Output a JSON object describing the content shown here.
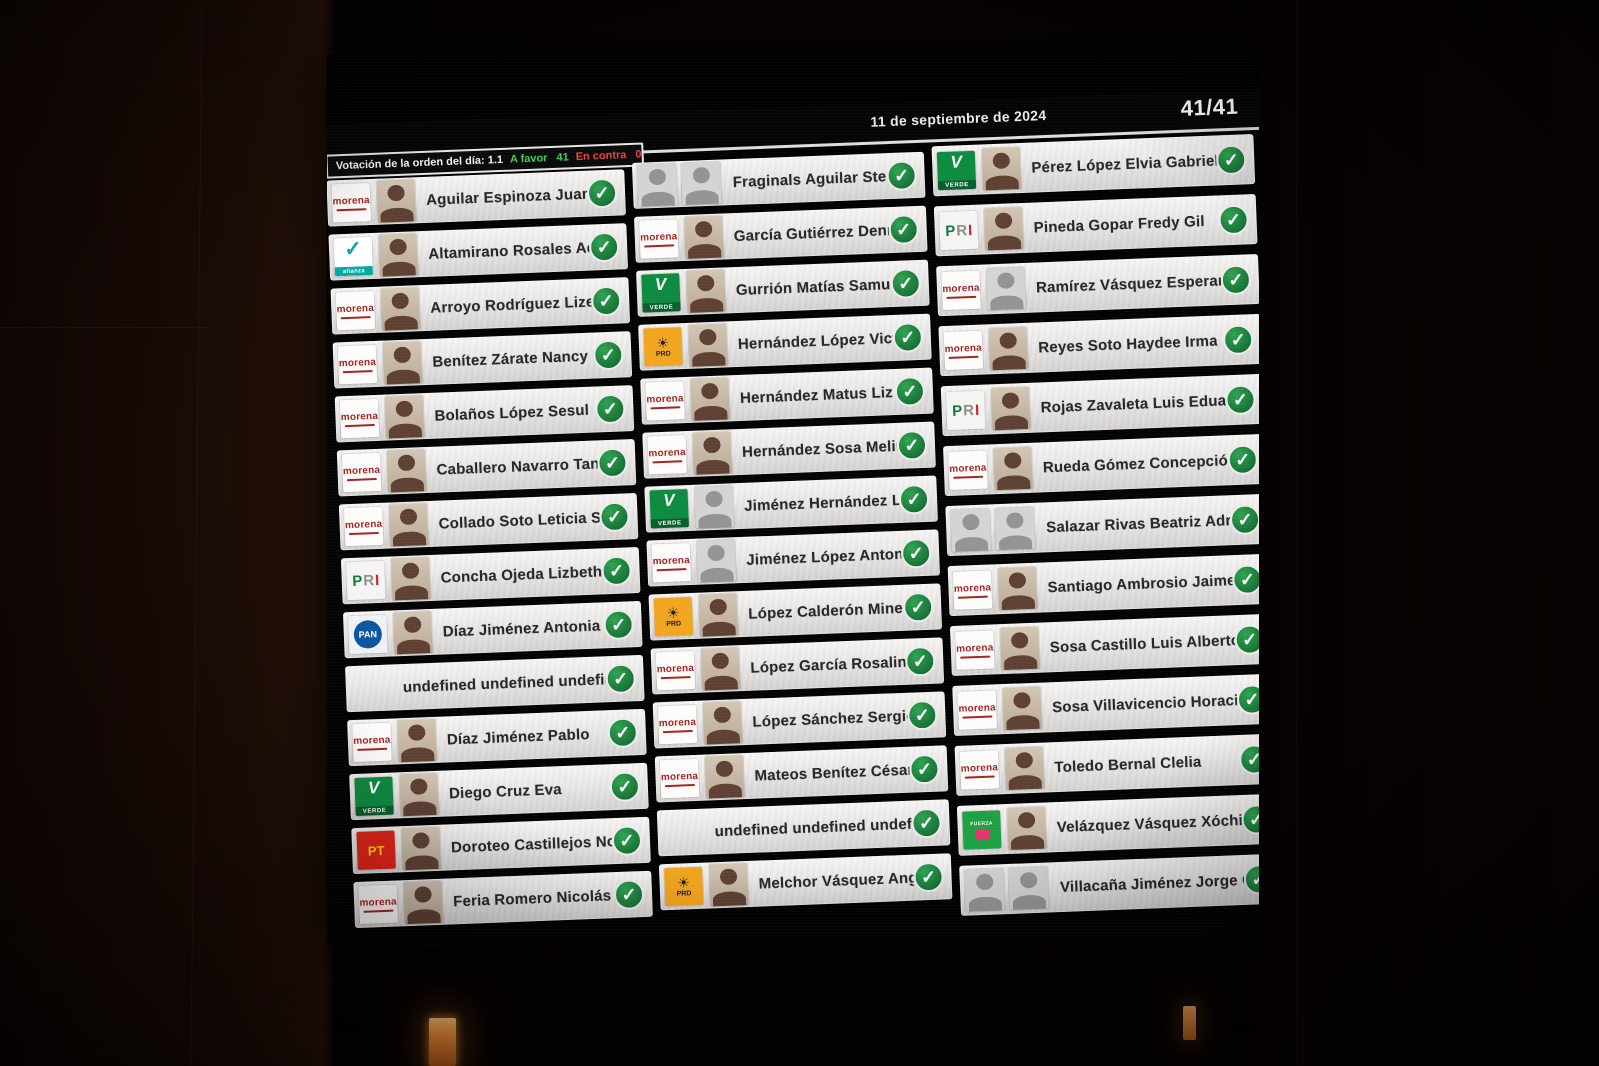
{
  "icons": {
    "vote_check": "✓",
    "sun": "☀"
  },
  "colors": {
    "favor_green": "#3ed14f",
    "contra_red": "#e8443a",
    "check_circle_green": "#177436",
    "row_light": "#e9e8e6",
    "screen_black": "#050505",
    "morena_red": "#a32420",
    "alianza_teal": "#00a7a3",
    "pan_blue": "#0a57a0",
    "verde_green": "#0d8c40",
    "pt_red": "#e02418",
    "prd_yellow": "#f2a51e",
    "fuerza_green": "#1ea144",
    "candle_orange": "#f5903a"
  },
  "screen": {
    "header": {
      "date": "11 de septiembre de 2024",
      "counter": "41/41"
    },
    "vote_summary": {
      "title": "Votación de la orden del día: 1.1",
      "favor_label": "A favor",
      "favor_count": "41",
      "contra_label": "En contra",
      "contra_count": "0"
    },
    "parties": {
      "morena": {
        "label": "morena"
      },
      "alianza": {
        "label": "alianza"
      },
      "pri": {
        "label": "PRI"
      },
      "pan": {
        "label": "PAN"
      },
      "verde": {
        "label": "VERDE"
      },
      "pt": {
        "label": "PT"
      },
      "prd": {
        "label": "PRD"
      },
      "fuerza": {
        "label": "FUERZA"
      },
      "none": {
        "label": ""
      }
    },
    "columns": [
      {
        "rows": [
          {
            "name": "Aguilar Espinoza Juana",
            "party": "morena",
            "photo": "photo",
            "vote": "favor"
          },
          {
            "name": "Altamirano Rosales Adriana",
            "party": "alianza",
            "photo": "photo",
            "vote": "favor"
          },
          {
            "name": "Arroyo Rodríguez Lizett",
            "party": "morena",
            "photo": "photo",
            "vote": "favor"
          },
          {
            "name": "Benítez Zárate Nancy Natalia",
            "party": "morena",
            "photo": "photo",
            "vote": "favor"
          },
          {
            "name": "Bolaños López Sesul",
            "party": "morena",
            "photo": "photo",
            "vote": "favor"
          },
          {
            "name": "Caballero Navarro Tania",
            "party": "morena",
            "photo": "photo",
            "vote": "favor"
          },
          {
            "name": "Collado Soto Leticia Socorro",
            "party": "morena",
            "photo": "photo",
            "vote": "favor"
          },
          {
            "name": "Concha Ojeda Lizbeth Anaid",
            "party": "pri",
            "photo": "photo",
            "vote": "favor"
          },
          {
            "name": "Díaz Jiménez Antonia Natividad",
            "party": "pan",
            "photo": "photo",
            "vote": "favor"
          },
          {
            "name": "undefined undefined undefined",
            "party": "none",
            "photo": "none",
            "vote": "favor"
          },
          {
            "name": "Díaz Jiménez Pablo",
            "party": "morena",
            "photo": "photo",
            "vote": "favor"
          },
          {
            "name": "Diego Cruz Eva",
            "party": "verde",
            "photo": "photo",
            "vote": "favor"
          },
          {
            "name": "Doroteo Castillejos Noé",
            "party": "pt",
            "photo": "photo",
            "vote": "favor"
          },
          {
            "name": "Feria Romero Nicolás Enrique",
            "party": "morena",
            "photo": "photo",
            "vote": "favor"
          }
        ]
      },
      {
        "rows": [
          {
            "name": "Fraginals Aguilar Stela María",
            "party": "none",
            "photo": "double-silhouette",
            "vote": "favor"
          },
          {
            "name": "García Gutiérrez Dennis",
            "party": "morena",
            "photo": "photo",
            "vote": "favor"
          },
          {
            "name": "Gurrión Matías Samuel",
            "party": "verde",
            "photo": "photo",
            "vote": "favor"
          },
          {
            "name": "Hernández López Victor Raúl",
            "party": "prd",
            "photo": "photo",
            "vote": "favor"
          },
          {
            "name": "Hernández Matus Liz",
            "party": "morena",
            "photo": "photo",
            "vote": "favor"
          },
          {
            "name": "Hernández Sosa Melina",
            "party": "morena",
            "photo": "photo",
            "vote": "favor"
          },
          {
            "name": "Jiménez Hernández Lenin",
            "party": "verde",
            "photo": "silhouette",
            "vote": "favor"
          },
          {
            "name": "Jiménez López Antonia",
            "party": "morena",
            "photo": "silhouette",
            "vote": "favor"
          },
          {
            "name": "López Calderón Minerva Leonor",
            "party": "prd",
            "photo": "photo",
            "vote": "favor"
          },
          {
            "name": "López García Rosalinda",
            "party": "morena",
            "photo": "photo",
            "vote": "favor"
          },
          {
            "name": "López Sánchez Sergio",
            "party": "morena",
            "photo": "photo",
            "vote": "favor"
          },
          {
            "name": "Mateos Benítez César David",
            "party": "morena",
            "photo": "photo",
            "vote": "favor"
          },
          {
            "name": "undefined undefined undefined",
            "party": "none",
            "photo": "none",
            "vote": "favor"
          },
          {
            "name": "Melchor Vásquez Angélica Rocío",
            "party": "prd",
            "photo": "photo",
            "vote": "favor"
          }
        ]
      },
      {
        "rows": [
          {
            "name": "Pérez López Elvia Gabriela",
            "party": "verde",
            "photo": "photo",
            "vote": "favor"
          },
          {
            "name": "Pineda Gopar Fredy Gil",
            "party": "pri",
            "photo": "photo",
            "vote": "favor"
          },
          {
            "name": "Ramírez Vásquez Esperanza",
            "party": "morena",
            "photo": "silhouette",
            "vote": "favor"
          },
          {
            "name": "Reyes Soto Haydee Irma",
            "party": "morena",
            "photo": "photo",
            "vote": "favor"
          },
          {
            "name": "Rojas Zavaleta Luis Eduardo",
            "party": "pri",
            "photo": "photo",
            "vote": "favor"
          },
          {
            "name": "Rueda Gómez Concepción",
            "party": "morena",
            "photo": "photo",
            "vote": "favor"
          },
          {
            "name": "Salazar Rivas Beatriz Adriana",
            "party": "none",
            "photo": "double-silhouette",
            "vote": "favor"
          },
          {
            "name": "Santiago Ambrosio Jaime Moisés",
            "party": "morena",
            "photo": "photo",
            "vote": "favor"
          },
          {
            "name": "Sosa Castillo Luis Alberto",
            "party": "morena",
            "photo": "photo",
            "vote": "favor"
          },
          {
            "name": "Sosa Villavicencio Horacio",
            "party": "morena",
            "photo": "photo",
            "vote": "favor"
          },
          {
            "name": "Toledo Bernal Clelia",
            "party": "morena",
            "photo": "photo",
            "vote": "favor"
          },
          {
            "name": "Velázquez Vásquez Xóchitl Jazmín",
            "party": "fuerza",
            "photo": "photo",
            "vote": "favor"
          },
          {
            "name": "Villacaña Jiménez Jorge Octavio",
            "party": "none",
            "photo": "double-silhouette",
            "vote": "favor"
          }
        ]
      }
    ]
  }
}
